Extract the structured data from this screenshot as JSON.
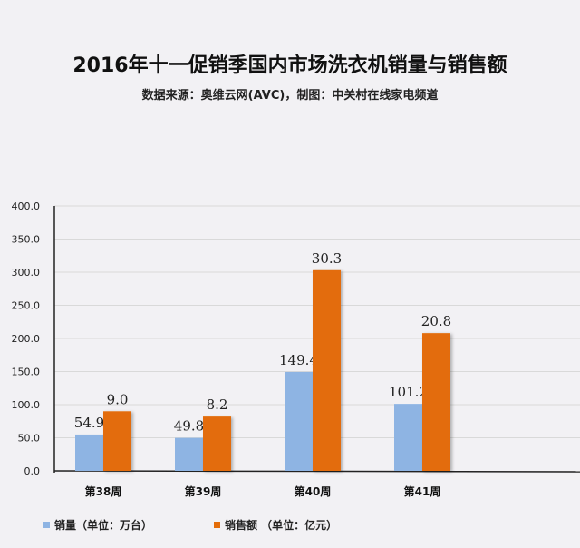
{
  "colors": {
    "volume": "#8eb4e3",
    "revenue": "#e36c09",
    "axis": "#222222",
    "grid": "#d9d9d9"
  },
  "chart_data": {
    "type": "bar",
    "title": "2016年十一促销季国内市场洗衣机销量与销售额",
    "subtitle": "数据来源：奥维云网(AVC)，制图：中关村在线家电频道",
    "categories": [
      "第38周",
      "第39周",
      "第40周",
      "第41周"
    ],
    "series": [
      {
        "name": "销量（单位：万台）",
        "values": [
          54.9,
          49.8,
          149.4,
          101.2
        ],
        "labels": [
          "54.9",
          "49.8",
          "149.4",
          "101.2"
        ]
      },
      {
        "name": "销售额 （单位：亿元）",
        "values": [
          9.0,
          8.2,
          30.3,
          20.8
        ],
        "labels": [
          "9.0",
          "8.2",
          "30.3",
          "20.8"
        ],
        "bar_scale": 10
      }
    ],
    "ylim": [
      0,
      400
    ],
    "yticks": [
      "0.0",
      "50.0",
      "100.0",
      "150.0",
      "200.0",
      "250.0",
      "300.0",
      "350.0",
      "400.0"
    ],
    "grid": true,
    "legend": "bottom-left"
  }
}
